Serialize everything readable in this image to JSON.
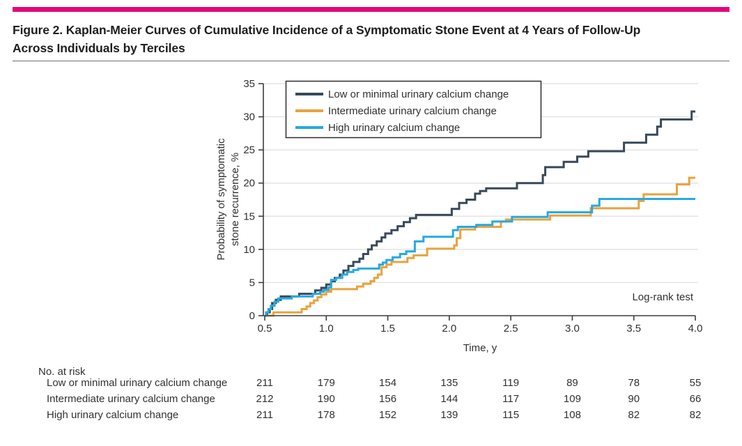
{
  "accent_color": "#E2077A",
  "title": {
    "line1": "Figure 2. Kaplan-Meier Curves of Cumulative Incidence of a Symptomatic Stone Event at 4 Years of Follow-Up",
    "line2": "Across Individuals by Terciles"
  },
  "chart_data": {
    "type": "line",
    "subtype": "kaplan-meier-step",
    "title": "",
    "xlabel": "Time, y",
    "ylabel_line1": "Probability of symptomatic",
    "ylabel_line2": "stone recurrence, %",
    "xlim": [
      0.5,
      4.0
    ],
    "ylim": [
      0,
      35
    ],
    "xticks": [
      0.5,
      1.0,
      1.5,
      2.0,
      2.5,
      3.0,
      3.5,
      4.0
    ],
    "yticks": [
      0,
      5,
      10,
      15,
      20,
      25,
      30,
      35
    ],
    "grid": "horizontal",
    "grid_color": "#DEDEDE",
    "axis_color": "#3D3D3D",
    "text_color": "#303030",
    "legend_position": "top-left",
    "annotation": "Log-rank test",
    "series": [
      {
        "name": "Low or minimal urinary calcium change",
        "color": "#37495A",
        "step_points": [
          [
            0.5,
            0
          ],
          [
            0.52,
            0.5
          ],
          [
            0.54,
            1.0
          ],
          [
            0.56,
            1.9
          ],
          [
            0.59,
            2.4
          ],
          [
            0.63,
            2.9
          ],
          [
            0.78,
            3.3
          ],
          [
            0.91,
            3.8
          ],
          [
            0.96,
            4.2
          ],
          [
            1.0,
            4.7
          ],
          [
            1.04,
            5.2
          ],
          [
            1.07,
            5.7
          ],
          [
            1.11,
            6.2
          ],
          [
            1.14,
            6.8
          ],
          [
            1.18,
            7.5
          ],
          [
            1.22,
            8.1
          ],
          [
            1.27,
            8.6
          ],
          [
            1.3,
            9.3
          ],
          [
            1.34,
            10.0
          ],
          [
            1.37,
            10.6
          ],
          [
            1.41,
            11.2
          ],
          [
            1.45,
            11.8
          ],
          [
            1.48,
            12.4
          ],
          [
            1.53,
            12.9
          ],
          [
            1.58,
            13.5
          ],
          [
            1.63,
            14.1
          ],
          [
            1.68,
            14.7
          ],
          [
            1.73,
            15.2
          ],
          [
            2.02,
            16.1
          ],
          [
            2.08,
            17.0
          ],
          [
            2.14,
            17.5
          ],
          [
            2.21,
            18.4
          ],
          [
            2.25,
            18.8
          ],
          [
            2.3,
            19.2
          ],
          [
            2.55,
            20.0
          ],
          [
            2.76,
            21.2
          ],
          [
            2.78,
            22.4
          ],
          [
            2.93,
            23.2
          ],
          [
            3.04,
            24.0
          ],
          [
            3.13,
            24.8
          ],
          [
            3.42,
            26.1
          ],
          [
            3.6,
            27.3
          ],
          [
            3.69,
            28.5
          ],
          [
            3.72,
            29.6
          ],
          [
            3.97,
            30.8
          ],
          [
            4.0,
            30.8
          ]
        ]
      },
      {
        "name": "Intermediate urinary calcium change",
        "color": "#E8A33C",
        "step_points": [
          [
            0.5,
            0
          ],
          [
            0.57,
            0.5
          ],
          [
            0.8,
            1.0
          ],
          [
            0.84,
            1.4
          ],
          [
            0.87,
            1.9
          ],
          [
            0.9,
            2.3
          ],
          [
            0.93,
            2.8
          ],
          [
            0.96,
            3.2
          ],
          [
            1.0,
            3.6
          ],
          [
            1.04,
            4.0
          ],
          [
            1.25,
            4.4
          ],
          [
            1.3,
            4.8
          ],
          [
            1.36,
            5.2
          ],
          [
            1.39,
            5.7
          ],
          [
            1.42,
            6.2
          ],
          [
            1.45,
            7.3
          ],
          [
            1.49,
            7.7
          ],
          [
            1.53,
            8.1
          ],
          [
            1.66,
            8.7
          ],
          [
            1.71,
            9.1
          ],
          [
            1.82,
            10.1
          ],
          [
            2.04,
            10.6
          ],
          [
            2.06,
            11.7
          ],
          [
            2.09,
            13.0
          ],
          [
            2.21,
            13.4
          ],
          [
            2.42,
            14.2
          ],
          [
            2.46,
            14.5
          ],
          [
            2.82,
            15.1
          ],
          [
            3.15,
            16.2
          ],
          [
            3.54,
            17.3
          ],
          [
            3.58,
            18.3
          ],
          [
            3.85,
            19.8
          ],
          [
            3.95,
            20.8
          ],
          [
            4.0,
            20.8
          ]
        ]
      },
      {
        "name": "High urinary calcium change",
        "color": "#27A9E1",
        "step_points": [
          [
            0.5,
            0
          ],
          [
            0.51,
            0.5
          ],
          [
            0.53,
            1.0
          ],
          [
            0.55,
            1.5
          ],
          [
            0.58,
            2.1
          ],
          [
            0.61,
            2.6
          ],
          [
            0.72,
            2.9
          ],
          [
            0.89,
            3.3
          ],
          [
            0.95,
            3.6
          ],
          [
            0.98,
            3.9
          ],
          [
            1.02,
            4.3
          ],
          [
            1.04,
            5.4
          ],
          [
            1.08,
            5.7
          ],
          [
            1.13,
            6.2
          ],
          [
            1.17,
            6.6
          ],
          [
            1.22,
            6.9
          ],
          [
            1.26,
            7.1
          ],
          [
            1.43,
            7.7
          ],
          [
            1.46,
            8.0
          ],
          [
            1.49,
            8.4
          ],
          [
            1.54,
            8.8
          ],
          [
            1.6,
            9.3
          ],
          [
            1.65,
            9.7
          ],
          [
            1.72,
            11.2
          ],
          [
            1.79,
            11.9
          ],
          [
            2.03,
            12.9
          ],
          [
            2.07,
            13.4
          ],
          [
            2.22,
            13.7
          ],
          [
            2.35,
            14.2
          ],
          [
            2.51,
            14.9
          ],
          [
            2.8,
            15.6
          ],
          [
            3.16,
            16.6
          ],
          [
            3.22,
            17.6
          ],
          [
            4.0,
            17.6
          ]
        ]
      }
    ]
  },
  "risk_table": {
    "header": "No. at risk",
    "times": [
      0.5,
      1.0,
      1.5,
      2.0,
      2.5,
      3.0,
      3.5,
      4.0
    ],
    "rows": [
      {
        "label": "Low or minimal urinary calcium change",
        "values": [
          211,
          179,
          154,
          135,
          119,
          89,
          78,
          55
        ]
      },
      {
        "label": "Intermediate urinary calcium change",
        "values": [
          212,
          190,
          156,
          144,
          117,
          109,
          90,
          66
        ]
      },
      {
        "label": "High urinary calcium change",
        "values": [
          211,
          178,
          152,
          139,
          115,
          108,
          82,
          82
        ]
      }
    ]
  }
}
